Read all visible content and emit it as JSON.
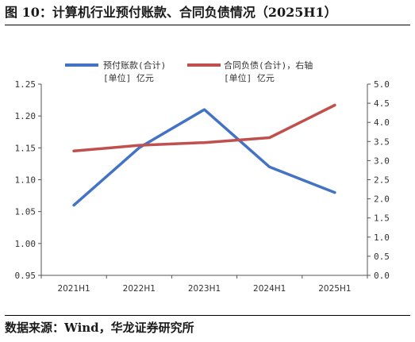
{
  "figure": {
    "title": "图 10：计算机行业预付账款、合同负债情况（2025H1）",
    "source": "数据来源：Wind，华龙证券研究所"
  },
  "chart_data": {
    "type": "line",
    "categories": [
      "2021H1",
      "2022H1",
      "2023H1",
      "2024H1",
      "2025H1"
    ],
    "series": [
      {
        "name": "预付账款(合计)",
        "unit_label": "[单位] 亿元",
        "axis": "left",
        "color": "#4472C4",
        "values": [
          1.06,
          1.15,
          1.21,
          1.12,
          1.08
        ]
      },
      {
        "name": "合同负债(合计)，右轴",
        "unit_label": "[单位] 亿元",
        "axis": "right",
        "color": "#C0504D",
        "values": [
          3.25,
          3.4,
          3.47,
          3.6,
          4.45
        ]
      }
    ],
    "yleft": {
      "lim": [
        0.95,
        1.25
      ],
      "ticks": [
        "1.25",
        "1.20",
        "1.15",
        "1.10",
        "1.05",
        "1.00",
        "0.95"
      ]
    },
    "yright": {
      "lim": [
        0.0,
        5.0
      ],
      "ticks": [
        "5.0",
        "4.5",
        "4.0",
        "3.5",
        "3.0",
        "2.5",
        "2.0",
        "1.5",
        "1.0",
        "0.5",
        "0.0"
      ]
    },
    "grid": false,
    "legend_position": "top"
  }
}
